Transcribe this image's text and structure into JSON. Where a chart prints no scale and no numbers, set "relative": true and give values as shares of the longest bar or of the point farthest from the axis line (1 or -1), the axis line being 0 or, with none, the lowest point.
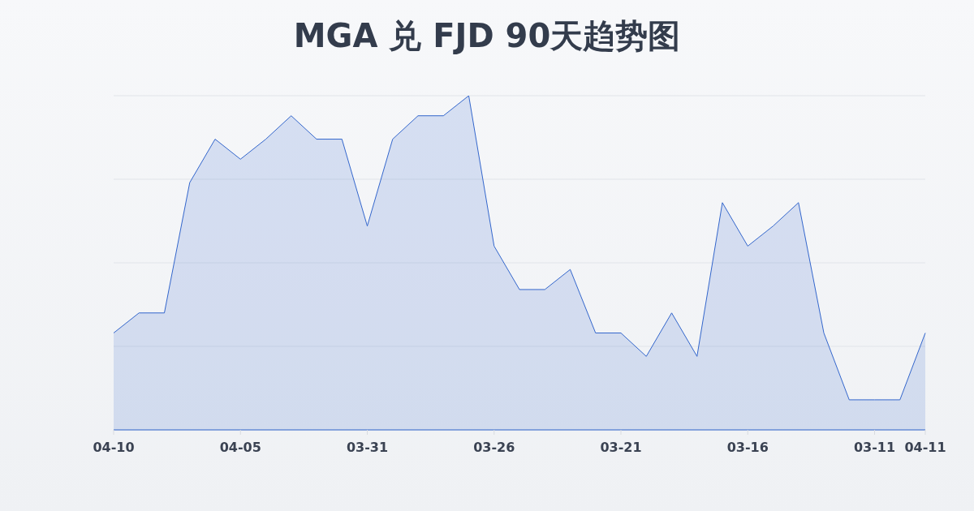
{
  "chart_data": {
    "type": "area",
    "title": "MGA 兑 FJD 90天趋势图",
    "categories": [
      "04-10",
      null,
      null,
      null,
      null,
      "04-05",
      null,
      null,
      null,
      null,
      "03-31",
      null,
      null,
      null,
      null,
      "03-26",
      null,
      null,
      null,
      null,
      "03-21",
      null,
      null,
      null,
      null,
      "03-16",
      null,
      null,
      null,
      null,
      "03-11",
      null,
      "04-11"
    ],
    "values": [
      0.29,
      0.35,
      0.35,
      0.74,
      0.87,
      0.81,
      0.87,
      0.94,
      0.87,
      0.87,
      0.61,
      0.87,
      0.94,
      0.94,
      1,
      0.55,
      0.42,
      0.42,
      0.48,
      0.29,
      0.29,
      0.22,
      0.35,
      0.22,
      0.68,
      0.55,
      0.61,
      0.68,
      0.29,
      0.09,
      0.09,
      0.09,
      0.29
    ],
    "color": "#3366cc",
    "relative": true,
    "grid": "y"
  }
}
